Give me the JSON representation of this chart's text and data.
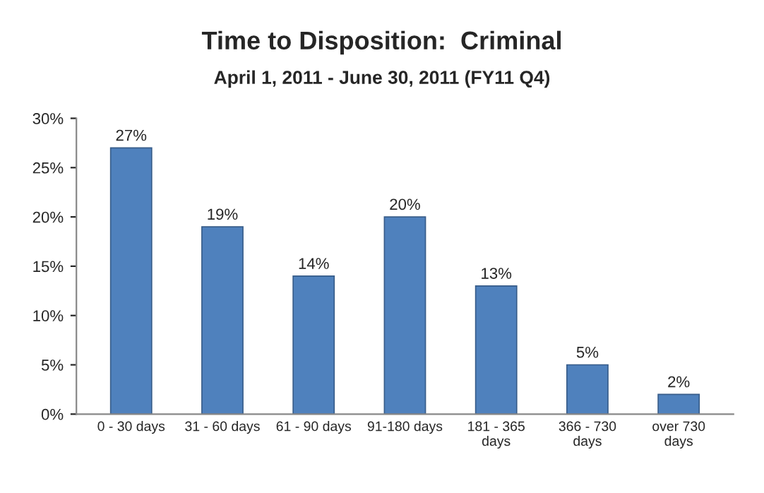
{
  "chart_data": {
    "type": "bar",
    "title": "Time to Disposition:  Criminal",
    "subtitle": "April 1, 2011 - June 30, 2011 (FY11 Q4)",
    "categories": [
      "0 - 30 days",
      "31 - 60 days",
      "61 - 90 days",
      "91-180 days",
      "181 - 365\ndays",
      "366 - 730\ndays",
      "over 730\ndays"
    ],
    "values": [
      27,
      19,
      14,
      20,
      13,
      5,
      2
    ],
    "value_labels": [
      "27%",
      "19%",
      "14%",
      "20%",
      "13%",
      "5%",
      "2%"
    ],
    "color": "#4f81bd",
    "ylim": [
      0,
      30
    ],
    "yticks": [
      {
        "value": 0,
        "label": "0%"
      },
      {
        "value": 5,
        "label": "5%"
      },
      {
        "value": 10,
        "label": "10%"
      },
      {
        "value": 15,
        "label": "15%"
      },
      {
        "value": 20,
        "label": "20%"
      },
      {
        "value": 25,
        "label": "25%"
      },
      {
        "value": 30,
        "label": "30%"
      }
    ],
    "grid": false
  }
}
